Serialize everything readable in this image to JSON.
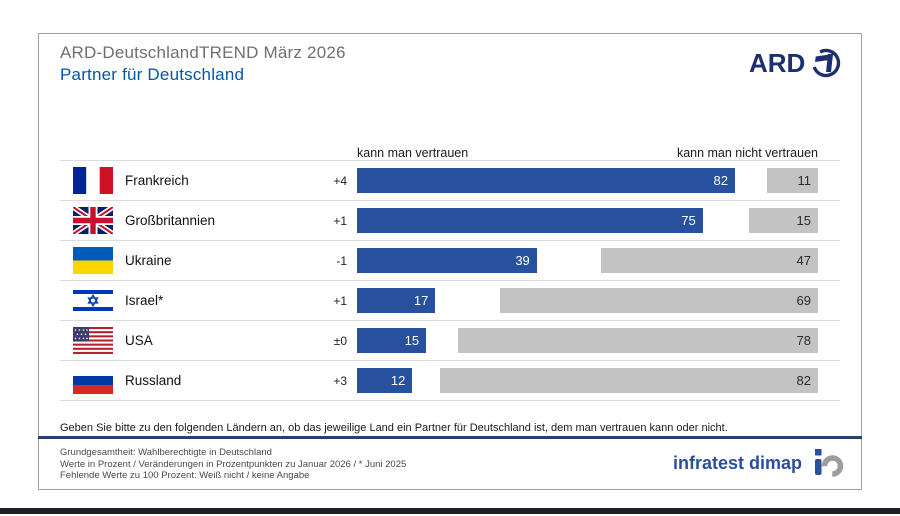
{
  "header": {
    "supertitle": "ARD-DeutschlandTREND März 2026",
    "title": "Partner für Deutschland",
    "ard_logo_text": "ARD"
  },
  "chart_data": {
    "type": "bar",
    "orientation": "horizontal",
    "left_header": "kann man vertrauen",
    "right_header": "kann man nicht vertrauen",
    "axis_max": 100,
    "unit": "Prozent",
    "colors": {
      "trust": "#27519f",
      "no_trust": "#c3c3c3",
      "title_blue": "#0057a8",
      "ard_navy": "#1d2f6e"
    },
    "rows": [
      {
        "country": "Frankreich",
        "flag": "france-flag",
        "change": "+4",
        "trust": 82,
        "no_trust": 11
      },
      {
        "country": "Großbritannien",
        "flag": "uk-flag",
        "change": "+1",
        "trust": 75,
        "no_trust": 15
      },
      {
        "country": "Ukraine",
        "flag": "ukraine-flag",
        "change": "-1",
        "trust": 39,
        "no_trust": 47
      },
      {
        "country": "Israel*",
        "flag": "israel-flag",
        "change": "+1",
        "trust": 17,
        "no_trust": 69
      },
      {
        "country": "USA",
        "flag": "usa-flag",
        "change": "±0",
        "trust": 15,
        "no_trust": 78
      },
      {
        "country": "Russland",
        "flag": "russia-flag",
        "change": "+3",
        "trust": 12,
        "no_trust": 82
      }
    ]
  },
  "question": "Geben Sie bitte zu den folgenden Ländern an, ob das jeweilige Land ein Partner für Deutschland ist, dem man vertrauen kann oder nicht.",
  "footnotes": [
    "Grundgesamtheit: Wahlberechtigte in Deutschland",
    "Werte in Prozent / Veränderungen in Prozentpunkten zu Januar 2026 / * Juni 2025",
    "Fehlende Werte zu 100 Prozent: Weiß nicht / keine Angabe"
  ],
  "branding": {
    "source_logo_text": "infratest dimap"
  }
}
